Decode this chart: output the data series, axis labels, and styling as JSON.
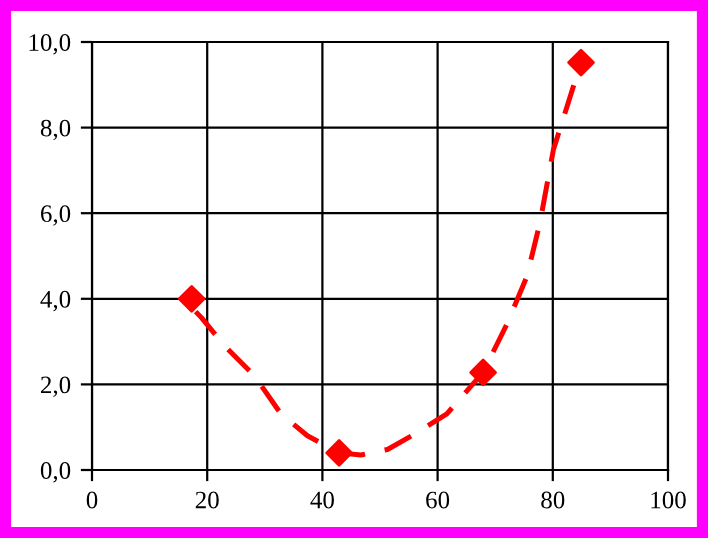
{
  "chart_data": {
    "type": "scatter",
    "series": [
      {
        "type": "line",
        "color": "#ff0000",
        "line_style": "dashed",
        "marker": "none",
        "x": [
          18,
          19,
          23,
          28.2,
          32.8,
          37.4,
          42.9,
          46.7,
          51.3,
          55.9,
          61.6,
          67.9,
          72,
          75.5,
          77.8,
          80.1,
          83.5,
          84.9
        ],
        "values": [
          3.7,
          3.56,
          2.9,
          2.2,
          1.31,
          0.8,
          0.4,
          0.35,
          0.48,
          0.83,
          1.31,
          2.28,
          3.4,
          4.52,
          5.8,
          7.48,
          8.93,
          9.52
        ]
      },
      {
        "color": "#ff0000",
        "marker": "diamond",
        "x": [
          17.3,
          42.9,
          67.9,
          84.9
        ],
        "values": [
          4.0,
          0.4,
          2.28,
          9.52
        ]
      }
    ],
    "xlim": [
      0,
      100
    ],
    "xticks": [
      0,
      20,
      40,
      60,
      80,
      100
    ],
    "ylim": [
      0,
      10
    ],
    "yticks": [
      {
        "value": 0,
        "label": "0,0"
      },
      {
        "value": 2,
        "label": "2,0"
      },
      {
        "value": 4,
        "label": "4,0"
      },
      {
        "value": 6,
        "label": "6,0"
      },
      {
        "value": 8,
        "label": "8,0"
      },
      {
        "value": 10,
        "label": "10,0"
      }
    ],
    "grid": true,
    "legend": false
  }
}
